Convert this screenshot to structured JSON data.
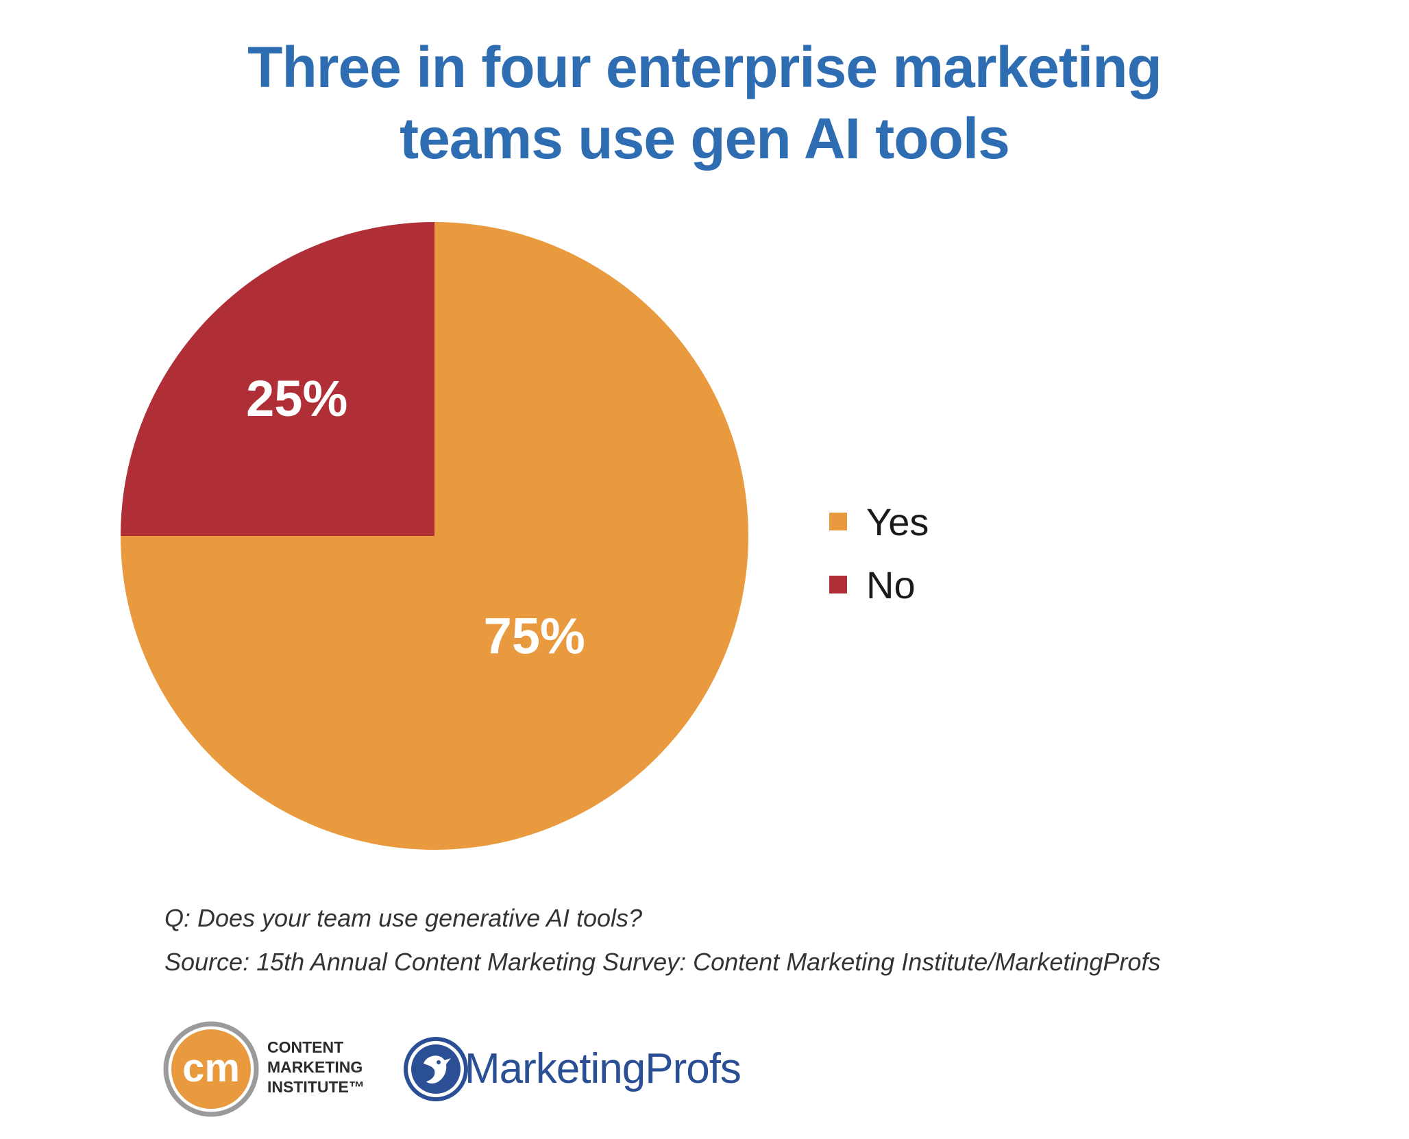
{
  "title": {
    "line1": "Three in four enterprise marketing",
    "line2": "teams use gen AI tools"
  },
  "chart_data": {
    "type": "pie",
    "title": "Three in four enterprise marketing teams use gen AI tools",
    "slices": [
      {
        "name": "Yes",
        "value": 75,
        "label": "75%",
        "color": "#e99a3f"
      },
      {
        "name": "No",
        "value": 25,
        "label": "25%",
        "color": "#b02f36"
      }
    ],
    "legend_placement": "right"
  },
  "legend": {
    "items": [
      {
        "label": "Yes",
        "color": "#e99a3f"
      },
      {
        "label": "No",
        "color": "#b02f36"
      }
    ]
  },
  "notes": {
    "question": "Q: Does your team use generative AI tools?",
    "source": "Source: 15th Annual Content Marketing Survey: Content Marketing Institute/MarketingProfs"
  },
  "logos": {
    "cmi": {
      "monogram": "cm",
      "line1": "CONTENT",
      "line2": "MARKETING",
      "line3": "INSTITUTE™"
    },
    "marketingprofs": {
      "name": "MarketingProfs"
    }
  },
  "colors": {
    "title": "#2f6db3",
    "yes": "#e99a3f",
    "no": "#b02f36",
    "cmi_orange": "#e99a3f",
    "cmi_ring": "#9a9a9a",
    "mp_blue": "#2a4f94"
  }
}
